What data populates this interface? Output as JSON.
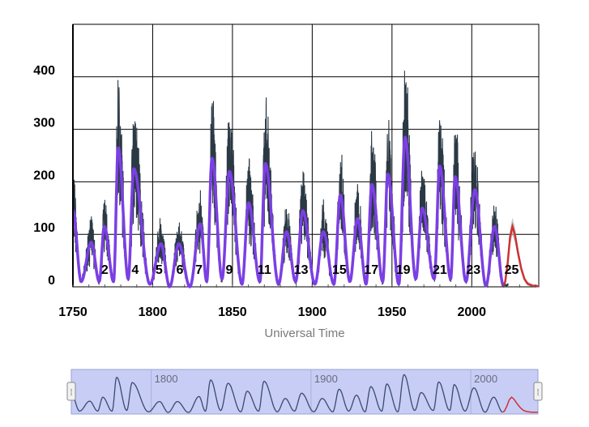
{
  "chart_data": {
    "type": "line",
    "xlabel": "Universal Time",
    "ylabel": "",
    "xlim": [
      1750,
      2042
    ],
    "ylim": [
      0,
      500
    ],
    "x_ticks": [
      1750,
      1800,
      1850,
      1900,
      1950,
      2000
    ],
    "y_ticks": [
      0,
      100,
      200,
      300,
      400
    ],
    "grid": true,
    "colors": {
      "monthly": "#2b3945",
      "smoothed": "#7b3fe4",
      "prediction": "#cc3333",
      "prediction_band": "#b0b0b0",
      "navigator_fill": "#c7cdf5",
      "navigator_line": "#3b4a6b"
    },
    "cycle_labels": [
      {
        "label": "2",
        "x": 1770
      },
      {
        "label": "4",
        "x": 1789
      },
      {
        "label": "5",
        "x": 1804
      },
      {
        "label": "6",
        "x": 1817
      },
      {
        "label": "7",
        "x": 1829
      },
      {
        "label": "9",
        "x": 1848
      },
      {
        "label": "11",
        "x": 1870
      },
      {
        "label": "13",
        "x": 1893
      },
      {
        "label": "15",
        "x": 1917
      },
      {
        "label": "17",
        "x": 1937
      },
      {
        "label": "19",
        "x": 1957
      },
      {
        "label": "21",
        "x": 1980
      },
      {
        "label": "23",
        "x": 2001
      },
      {
        "label": "25",
        "x": 2025
      }
    ],
    "series": [
      {
        "name": "",
        "style": "smoothed",
        "x": [
          1750,
          1755.2,
          1761.5,
          1766.5,
          1769.7,
          1775.5,
          1778.4,
          1784.7,
          1788.1,
          1798.3,
          1805.2,
          1810.6,
          1816.4,
          1823.3,
          1829.9,
          1833.9,
          1837.2,
          1843.5,
          1848.1,
          1856,
          1860.1,
          1867.2,
          1870.6,
          1878.9,
          1883.9,
          1889.6,
          1894.1,
          1901.7,
          1907,
          1913.6,
          1917.6,
          1923.6,
          1928.4,
          1933.8,
          1937.4,
          1944.2,
          1947.4,
          1954.3,
          1958.2,
          1964.9,
          1968.9,
          1976.5,
          1979.9,
          1986.8,
          1989.6,
          1996.4,
          2001.9,
          2008.9,
          2014.3,
          2019.9
        ],
        "y": [
          145,
          10,
          85,
          10,
          115,
          10,
          265,
          15,
          225,
          5,
          82,
          0,
          82,
          0,
          120,
          10,
          245,
          15,
          220,
          5,
          160,
          10,
          235,
          5,
          105,
          10,
          145,
          5,
          105,
          5,
          175,
          10,
          130,
          5,
          195,
          10,
          215,
          5,
          285,
          15,
          150,
          15,
          230,
          15,
          210,
          10,
          185,
          2,
          115,
          2
        ]
      },
      {
        "name": "",
        "style": "prediction",
        "x": [
          2019.9,
          2021,
          2022.5,
          2024,
          2025.5,
          2027,
          2029,
          2031,
          2033,
          2035,
          2038,
          2042
        ],
        "y": [
          2,
          10,
          45,
          95,
          115,
          100,
          65,
          35,
          15,
          6,
          2,
          1
        ]
      }
    ],
    "navigator": {
      "labels": [
        "1800",
        "1900",
        "2000"
      ],
      "label_x": [
        1800,
        1900,
        2000
      ],
      "handle_left_label": "⁞",
      "handle_right_label": "⁞"
    }
  }
}
